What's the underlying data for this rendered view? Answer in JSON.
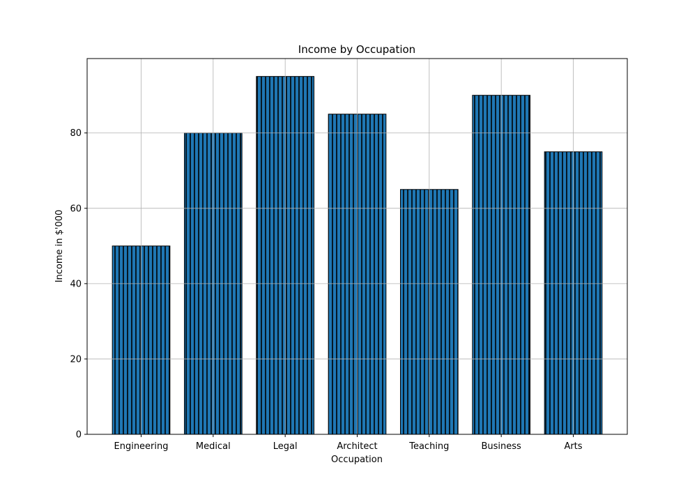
{
  "chart_data": {
    "type": "bar",
    "title": "Income by Occupation",
    "xlabel": "Occupation",
    "ylabel": "Income in $'000",
    "categories": [
      "Engineering",
      "Medical",
      "Legal",
      "Architect",
      "Teaching",
      "Business",
      "Arts"
    ],
    "values": [
      50,
      80,
      95,
      85,
      65,
      90,
      75
    ],
    "ylim": [
      0,
      99.75
    ],
    "yticks": [
      0,
      20,
      40,
      60,
      80
    ],
    "grid": true,
    "bar_color": "#1f77b4",
    "bar_hatch": "vertical-lines",
    "edge_color": "#000000"
  }
}
